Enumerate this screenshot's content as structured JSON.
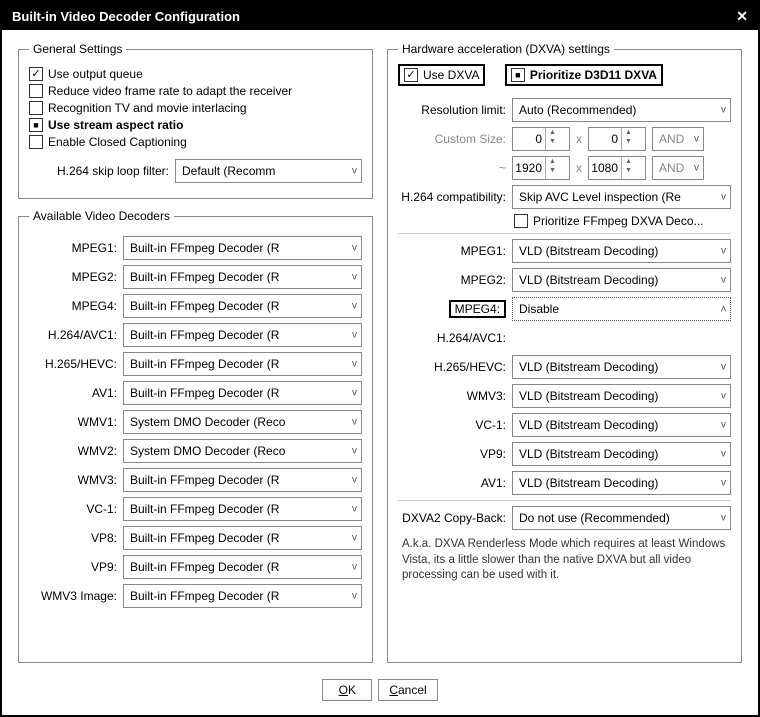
{
  "window": {
    "title": "Built-in Video Decoder Configuration"
  },
  "general": {
    "legend": "General Settings",
    "use_output_queue": "Use output queue",
    "reduce_frame_rate": "Reduce video frame rate to adapt the receiver",
    "recognition_tv": "Recognition TV and movie interlacing",
    "use_stream_aspect": "Use stream aspect ratio",
    "enable_cc": "Enable Closed Captioning",
    "skip_loop_label": "H.264 skip loop filter:",
    "skip_loop_value": "Default (Recomm"
  },
  "decoders": {
    "legend": "Available Video Decoders",
    "items": [
      {
        "label": "MPEG1:",
        "value": "Built-in FFmpeg Decoder (R"
      },
      {
        "label": "MPEG2:",
        "value": "Built-in FFmpeg Decoder (R"
      },
      {
        "label": "MPEG4:",
        "value": "Built-in FFmpeg Decoder (R"
      },
      {
        "label": "H.264/AVC1:",
        "value": "Built-in FFmpeg Decoder (R"
      },
      {
        "label": "H.265/HEVC:",
        "value": "Built-in FFmpeg Decoder (R"
      },
      {
        "label": "AV1:",
        "value": "Built-in FFmpeg Decoder (R"
      },
      {
        "label": "WMV1:",
        "value": "System DMO Decoder (Reco"
      },
      {
        "label": "WMV2:",
        "value": "System DMO Decoder (Reco"
      },
      {
        "label": "WMV3:",
        "value": "Built-in FFmpeg Decoder (R"
      },
      {
        "label": "VC-1:",
        "value": "Built-in FFmpeg Decoder (R"
      },
      {
        "label": "VP8:",
        "value": "Built-in FFmpeg Decoder (R"
      },
      {
        "label": "VP9:",
        "value": "Built-in FFmpeg Decoder (R"
      },
      {
        "label": "WMV3 Image:",
        "value": "Built-in FFmpeg Decoder (R"
      }
    ]
  },
  "hw": {
    "legend": "Hardware acceleration (DXVA) settings",
    "use_dxva": "Use DXVA",
    "prioritize_d3d11": "Prioritize D3D11 DXVA",
    "res_limit_label": "Resolution limit:",
    "res_limit_value": "Auto (Recommended)",
    "custom_size_label": "Custom Size:",
    "cs_w": "0",
    "cs_h": "0",
    "cs_logic": "AND",
    "tilde": "~",
    "max_w": "1920",
    "max_h": "1080",
    "max_logic": "AND",
    "compat_label": "H.264 compatibility:",
    "compat_value": "Skip AVC Level inspection (Re",
    "prioritize_ffmpeg": "Prioritize FFmpeg DXVA Deco...",
    "codecs": [
      {
        "label": "MPEG1:",
        "value": "VLD (Bitstream Decoding)",
        "caret": "v"
      },
      {
        "label": "MPEG2:",
        "value": "VLD (Bitstream Decoding)",
        "caret": "v"
      },
      {
        "label": "MPEG4:",
        "value": "Disable",
        "caret": "ʌ",
        "open": true,
        "highlight": true
      },
      {
        "label": "H.264/AVC1:",
        "value": "",
        "caret": ""
      },
      {
        "label": "H.265/HEVC:",
        "value": "VLD (Bitstream Decoding)",
        "caret": "v"
      },
      {
        "label": "WMV3:",
        "value": "VLD (Bitstream Decoding)",
        "caret": "v"
      },
      {
        "label": "VC-1:",
        "value": "VLD (Bitstream Decoding)",
        "caret": "v"
      },
      {
        "label": "VP9:",
        "value": "VLD (Bitstream Decoding)",
        "caret": "v"
      },
      {
        "label": "AV1:",
        "value": "VLD (Bitstream Decoding)",
        "caret": "v"
      }
    ],
    "dropdown_opts": [
      "Disable",
      "VLD (Bitstream Decoding)"
    ],
    "copyback_label": "DXVA2 Copy-Back:",
    "copyback_value": "Do not use (Recommended)",
    "note": "A.k.a. DXVA Renderless Mode which requires at least Windows Vista, its a little slower than the native DXVA but all video processing can be used with it."
  },
  "buttons": {
    "ok": "OK",
    "cancel": "Cancel"
  }
}
